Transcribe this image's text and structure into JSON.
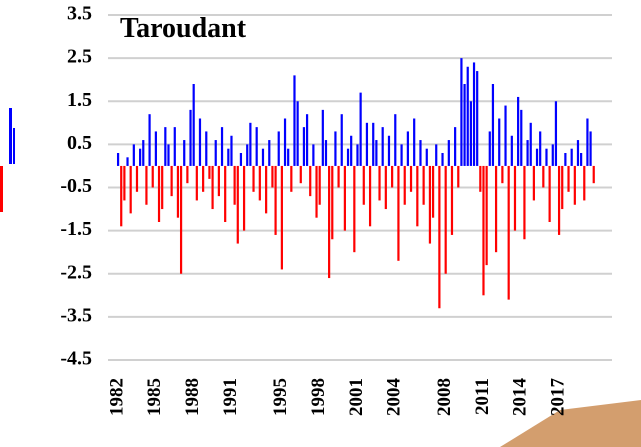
{
  "chart_data": {
    "type": "bar",
    "title": "Taroudant",
    "x": [
      1982,
      1982.25,
      1982.5,
      1982.75,
      1983,
      1983.25,
      1983.5,
      1983.75,
      1984,
      1984.25,
      1984.5,
      1984.75,
      1985,
      1985.25,
      1985.5,
      1985.75,
      1986,
      1986.25,
      1986.5,
      1986.75,
      1987,
      1987.25,
      1987.5,
      1987.75,
      1988,
      1988.25,
      1988.5,
      1988.75,
      1989,
      1989.25,
      1989.5,
      1989.75,
      1990,
      1990.25,
      1990.5,
      1990.75,
      1991,
      1991.25,
      1991.5,
      1991.75,
      1992,
      1992.25,
      1992.5,
      1992.75,
      1993,
      1993.25,
      1993.5,
      1993.75,
      1994,
      1994.25,
      1994.5,
      1994.75,
      1995,
      1995.25,
      1995.5,
      1995.75,
      1996,
      1996.25,
      1996.5,
      1996.75,
      1997,
      1997.25,
      1997.5,
      1997.75,
      1998,
      1998.25,
      1998.5,
      1998.75,
      1999,
      1999.25,
      1999.5,
      1999.75,
      2000,
      2000.25,
      2000.5,
      2000.75,
      2001,
      2001.25,
      2001.5,
      2001.75,
      2002,
      2002.25,
      2002.5,
      2002.75,
      2003,
      2003.25,
      2003.5,
      2003.75,
      2004,
      2004.25,
      2004.5,
      2004.75,
      2005,
      2005.25,
      2005.5,
      2005.75,
      2006,
      2006.25,
      2006.5,
      2006.75,
      2007,
      2007.25,
      2007.5,
      2007.75,
      2008,
      2008.25,
      2008.5,
      2008.75,
      2009,
      2009.25,
      2009.5,
      2009.75,
      2010,
      2010.25,
      2010.5,
      2010.75,
      2011,
      2011.25,
      2011.5,
      2011.75,
      2012,
      2012.25,
      2012.5,
      2012.75,
      2013,
      2013.25,
      2013.5,
      2013.75,
      2014,
      2014.25,
      2014.5,
      2014.75,
      2015,
      2015.25,
      2015.5,
      2015.75,
      2016,
      2016.25,
      2016.5,
      2016.75,
      2017,
      2017.25,
      2017.5,
      2017.75,
      2018,
      2018.25,
      2018.5,
      2018.75,
      2019,
      2019.25,
      2019.5,
      2019.75
    ],
    "values": [
      0.3,
      -1.4,
      -0.8,
      0.2,
      -1.1,
      0.5,
      -0.6,
      0.4,
      0.6,
      -0.9,
      1.2,
      -0.5,
      0.8,
      -1.3,
      -1.0,
      0.9,
      0.5,
      -0.7,
      0.9,
      -1.2,
      -2.5,
      0.6,
      -0.4,
      1.3,
      1.9,
      -0.8,
      1.1,
      -0.6,
      0.8,
      -0.3,
      -1.0,
      0.6,
      -0.7,
      0.9,
      -1.3,
      0.4,
      0.7,
      -0.9,
      -1.8,
      0.3,
      -1.5,
      0.5,
      1.0,
      -0.6,
      0.9,
      -0.8,
      0.4,
      -1.1,
      0.6,
      -0.5,
      -1.6,
      0.8,
      -2.4,
      1.1,
      0.4,
      -0.6,
      2.1,
      1.5,
      -0.4,
      0.9,
      1.2,
      -0.7,
      0.5,
      -1.2,
      -0.9,
      1.3,
      0.6,
      -2.6,
      -1.7,
      0.8,
      -0.5,
      1.2,
      -1.5,
      0.4,
      0.7,
      -2.0,
      0.5,
      1.7,
      -0.9,
      1.0,
      -1.4,
      1.0,
      0.6,
      -0.8,
      0.9,
      -1.0,
      0.7,
      -0.5,
      1.2,
      -2.2,
      0.5,
      -0.9,
      0.8,
      -0.6,
      1.1,
      -1.4,
      0.6,
      -0.9,
      0.4,
      -1.8,
      -1.2,
      0.5,
      -3.3,
      0.3,
      -2.5,
      0.6,
      -1.6,
      0.9,
      -0.5,
      2.5,
      1.9,
      2.3,
      1.5,
      2.4,
      2.2,
      -0.6,
      -3.0,
      -2.3,
      0.8,
      1.9,
      -2.0,
      1.1,
      -0.4,
      1.4,
      -3.1,
      0.7,
      -1.5,
      1.6,
      1.3,
      -1.7,
      0.6,
      1.0,
      -0.8,
      0.4,
      0.8,
      -0.5,
      0.4,
      -1.3,
      0.5,
      1.5,
      -1.6,
      -1.0,
      0.3,
      -0.6,
      0.4,
      -0.9,
      0.6,
      0.3,
      -0.8,
      1.1,
      0.8,
      -0.4
    ],
    "positive_color": "#0000ff",
    "negative_color": "#ff0000",
    "xlim": [
      1981.2,
      2021.2
    ],
    "xticks": [
      1982,
      1985,
      1988,
      1991,
      1995,
      1998,
      2001,
      2004,
      2008,
      2011,
      2014,
      2017
    ],
    "ylim": [
      -4.5,
      3.5
    ],
    "yticks": [
      3.5,
      2.5,
      1.5,
      0.5,
      -0.5,
      -1.5,
      -2.5,
      -3.5,
      -4.5
    ],
    "grid": true
  }
}
